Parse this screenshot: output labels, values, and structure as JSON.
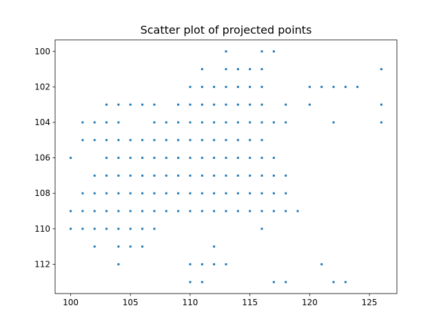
{
  "chart_data": {
    "type": "scatter",
    "title": "Scatter plot of projected points",
    "xlabel": "",
    "ylabel": "",
    "xlim": [
      98.7,
      127.3
    ],
    "ylim": [
      113.65,
      99.35
    ],
    "y_inverted": true,
    "x_ticks": [
      100,
      105,
      110,
      115,
      120,
      125
    ],
    "y_ticks": [
      100,
      102,
      104,
      106,
      108,
      110,
      112
    ],
    "grid": false,
    "marker_color": "#1f77b4",
    "points": [
      [
        113,
        100
      ],
      [
        116,
        100
      ],
      [
        117,
        100
      ],
      [
        111,
        101
      ],
      [
        113,
        101
      ],
      [
        114,
        101
      ],
      [
        115,
        101
      ],
      [
        116,
        101
      ],
      [
        126,
        101
      ],
      [
        110,
        102
      ],
      [
        111,
        102
      ],
      [
        112,
        102
      ],
      [
        113,
        102
      ],
      [
        114,
        102
      ],
      [
        115,
        102
      ],
      [
        116,
        102
      ],
      [
        120,
        102
      ],
      [
        121,
        102
      ],
      [
        122,
        102
      ],
      [
        123,
        102
      ],
      [
        124,
        102
      ],
      [
        103,
        103
      ],
      [
        104,
        103
      ],
      [
        105,
        103
      ],
      [
        106,
        103
      ],
      [
        107,
        103
      ],
      [
        109,
        103
      ],
      [
        110,
        103
      ],
      [
        111,
        103
      ],
      [
        112,
        103
      ],
      [
        113,
        103
      ],
      [
        114,
        103
      ],
      [
        115,
        103
      ],
      [
        116,
        103
      ],
      [
        118,
        103
      ],
      [
        120,
        103
      ],
      [
        126,
        103
      ],
      [
        101,
        104
      ],
      [
        102,
        104
      ],
      [
        103,
        104
      ],
      [
        104,
        104
      ],
      [
        107,
        104
      ],
      [
        108,
        104
      ],
      [
        109,
        104
      ],
      [
        110,
        104
      ],
      [
        111,
        104
      ],
      [
        112,
        104
      ],
      [
        113,
        104
      ],
      [
        114,
        104
      ],
      [
        115,
        104
      ],
      [
        116,
        104
      ],
      [
        117,
        104
      ],
      [
        118,
        104
      ],
      [
        122,
        104
      ],
      [
        126,
        104
      ],
      [
        101,
        105
      ],
      [
        102,
        105
      ],
      [
        103,
        105
      ],
      [
        104,
        105
      ],
      [
        105,
        105
      ],
      [
        106,
        105
      ],
      [
        107,
        105
      ],
      [
        108,
        105
      ],
      [
        109,
        105
      ],
      [
        110,
        105
      ],
      [
        111,
        105
      ],
      [
        112,
        105
      ],
      [
        113,
        105
      ],
      [
        114,
        105
      ],
      [
        115,
        105
      ],
      [
        116,
        105
      ],
      [
        100,
        106
      ],
      [
        103,
        106
      ],
      [
        104,
        106
      ],
      [
        105,
        106
      ],
      [
        106,
        106
      ],
      [
        107,
        106
      ],
      [
        108,
        106
      ],
      [
        109,
        106
      ],
      [
        110,
        106
      ],
      [
        111,
        106
      ],
      [
        112,
        106
      ],
      [
        113,
        106
      ],
      [
        114,
        106
      ],
      [
        115,
        106
      ],
      [
        116,
        106
      ],
      [
        117,
        106
      ],
      [
        102,
        107
      ],
      [
        103,
        107
      ],
      [
        104,
        107
      ],
      [
        105,
        107
      ],
      [
        106,
        107
      ],
      [
        107,
        107
      ],
      [
        108,
        107
      ],
      [
        109,
        107
      ],
      [
        110,
        107
      ],
      [
        111,
        107
      ],
      [
        112,
        107
      ],
      [
        113,
        107
      ],
      [
        114,
        107
      ],
      [
        115,
        107
      ],
      [
        116,
        107
      ],
      [
        117,
        107
      ],
      [
        118,
        107
      ],
      [
        101,
        108
      ],
      [
        102,
        108
      ],
      [
        103,
        108
      ],
      [
        104,
        108
      ],
      [
        105,
        108
      ],
      [
        106,
        108
      ],
      [
        107,
        108
      ],
      [
        108,
        108
      ],
      [
        109,
        108
      ],
      [
        110,
        108
      ],
      [
        111,
        108
      ],
      [
        112,
        108
      ],
      [
        113,
        108
      ],
      [
        114,
        108
      ],
      [
        115,
        108
      ],
      [
        116,
        108
      ],
      [
        117,
        108
      ],
      [
        118,
        108
      ],
      [
        100,
        109
      ],
      [
        101,
        109
      ],
      [
        102,
        109
      ],
      [
        103,
        109
      ],
      [
        104,
        109
      ],
      [
        105,
        109
      ],
      [
        106,
        109
      ],
      [
        107,
        109
      ],
      [
        108,
        109
      ],
      [
        109,
        109
      ],
      [
        110,
        109
      ],
      [
        111,
        109
      ],
      [
        112,
        109
      ],
      [
        113,
        109
      ],
      [
        114,
        109
      ],
      [
        115,
        109
      ],
      [
        116,
        109
      ],
      [
        117,
        109
      ],
      [
        118,
        109
      ],
      [
        119,
        109
      ],
      [
        100,
        110
      ],
      [
        101,
        110
      ],
      [
        102,
        110
      ],
      [
        103,
        110
      ],
      [
        104,
        110
      ],
      [
        105,
        110
      ],
      [
        106,
        110
      ],
      [
        107,
        110
      ],
      [
        116,
        110
      ],
      [
        102,
        111
      ],
      [
        104,
        111
      ],
      [
        105,
        111
      ],
      [
        106,
        111
      ],
      [
        112,
        111
      ],
      [
        104,
        112
      ],
      [
        110,
        112
      ],
      [
        111,
        112
      ],
      [
        112,
        112
      ],
      [
        113,
        112
      ],
      [
        121,
        112
      ],
      [
        110,
        113
      ],
      [
        111,
        113
      ],
      [
        117,
        113
      ],
      [
        118,
        113
      ],
      [
        122,
        113
      ],
      [
        123,
        113
      ]
    ]
  }
}
